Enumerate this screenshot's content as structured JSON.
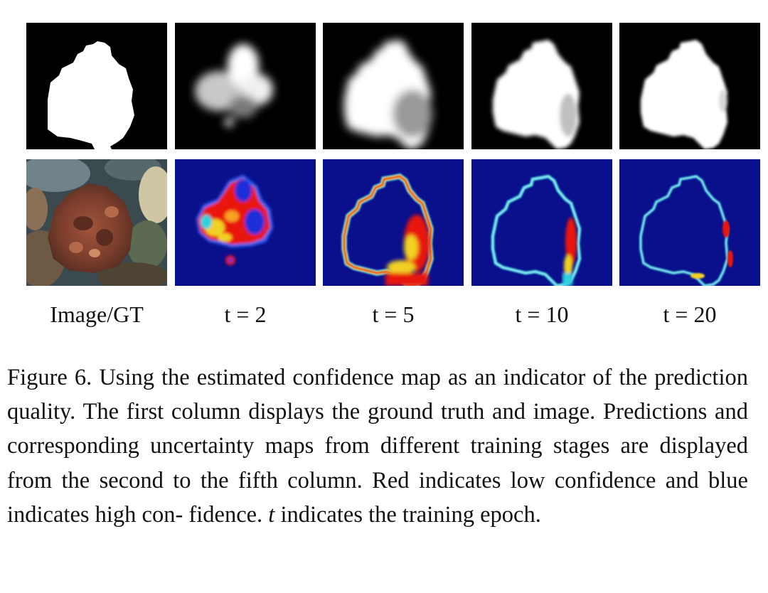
{
  "figure": {
    "columns": [
      {
        "label": "Image/GT",
        "top_panel": "ground-truth-mask",
        "bottom_panel": "input-image"
      },
      {
        "label": "t = 2",
        "top_panel": "prediction",
        "bottom_panel": "uncertainty-map"
      },
      {
        "label": "t = 5",
        "top_panel": "prediction",
        "bottom_panel": "uncertainty-map"
      },
      {
        "label": "t = 10",
        "top_panel": "prediction",
        "bottom_panel": "uncertainty-map"
      },
      {
        "label": "t = 20",
        "top_panel": "prediction",
        "bottom_panel": "uncertainty-map"
      }
    ],
    "colors": {
      "mask_background": "#000000",
      "mask_foreground": "#ffffff",
      "heatmap_low": "#0a0f8c",
      "heatmap_high": "#e8180c"
    }
  },
  "caption": {
    "figure_number": "Figure 6.",
    "text_part1": "Using the estimated confidence map as an indicator of the prediction quality. The first column displays the ground truth and image. Predictions and corresponding uncertainty maps from different training stages are displayed from the second to the fifth column. Red indicates low confidence and blue indicates high con- fidence.",
    "variable": "t",
    "text_part2": "indicates the training epoch."
  }
}
